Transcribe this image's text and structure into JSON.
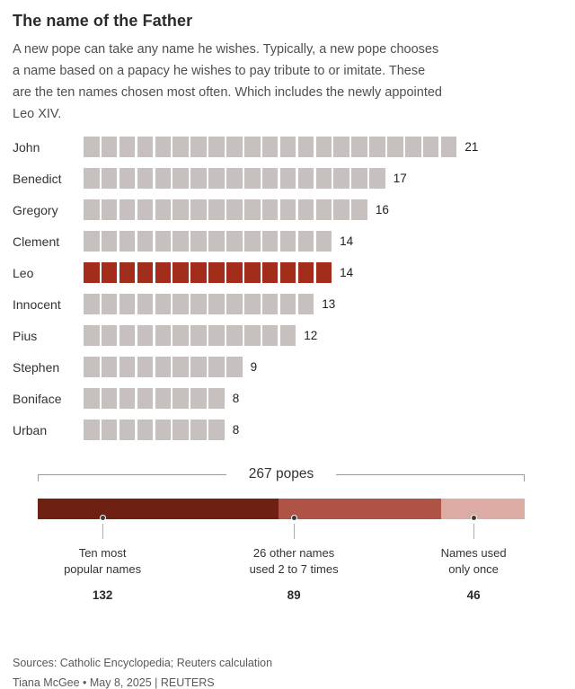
{
  "header": {
    "title": "The name of the Father",
    "subtitle": "A new pope can take any name he wishes. Typically, a new pope chooses a name based on a papacy he wishes to pay tribute to or imitate. These are the ten names chosen most often. Which includes the newly appointed Leo XIV."
  },
  "chart_data": [
    {
      "type": "bar",
      "orientation": "horizontal",
      "style": "segmented-unit-squares",
      "categories": [
        "John",
        "Benedict",
        "Gregory",
        "Clement",
        "Leo",
        "Innocent",
        "Pius",
        "Stephen",
        "Boniface",
        "Urban"
      ],
      "values": [
        21,
        17,
        16,
        14,
        14,
        13,
        12,
        9,
        8,
        8
      ],
      "highlight_category": "Leo",
      "bar_color": "#c6c0bf",
      "highlight_color": "#a22d1d",
      "xlim": [
        0,
        21
      ],
      "value_labels": true,
      "grid": false,
      "legend": false
    },
    {
      "type": "bar",
      "subtype": "stacked-single-row",
      "bracket_label": "267 popes",
      "total": 267,
      "segments": [
        {
          "label_line1": "Ten most",
          "label_line2": "popular names",
          "value": 132,
          "color": "#6e2013",
          "anchor_pct": 13.3
        },
        {
          "label_line1": "26 other names",
          "label_line2": "used 2 to 7 times",
          "value": 89,
          "color": "#b05347",
          "anchor_pct": 52.6
        },
        {
          "label_line1": "Names used",
          "label_line2": "only once",
          "value": 46,
          "color": "#dcaba3",
          "anchor_pct": 89.5
        }
      ]
    }
  ],
  "footer": {
    "sources": "Sources: Catholic Encyclopedia; Reuters calculation",
    "byline": "Tiana McGee • May 8, 2025 | REUTERS"
  }
}
